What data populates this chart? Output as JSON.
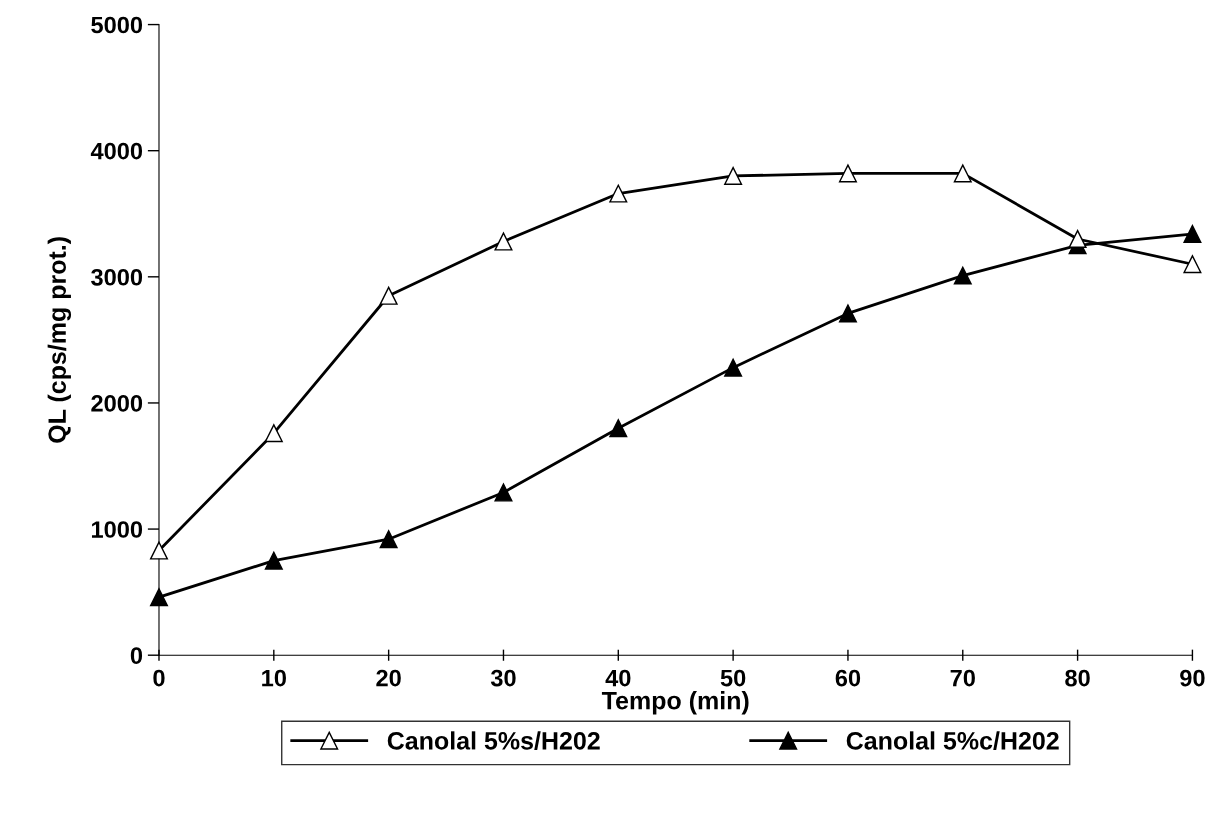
{
  "chart_data": {
    "type": "line",
    "xlabel": "Tempo (min)",
    "ylabel": "QL (cps/mg prot.)",
    "x": [
      0,
      10,
      20,
      30,
      40,
      50,
      60,
      70,
      80,
      90
    ],
    "series": [
      {
        "name": "Canolal 5%s/H202",
        "color": "#000000",
        "marker": "triangle",
        "values": [
          830,
          1760,
          2850,
          3280,
          3660,
          3800,
          3820,
          3820,
          3300,
          3100
        ]
      },
      {
        "name": "Canolal 5%c/H202",
        "color": "#000000",
        "marker": "triangle",
        "values": [
          460,
          750,
          920,
          1290,
          1800,
          2280,
          2710,
          3010,
          3250,
          3340
        ]
      }
    ],
    "xlim": [
      0,
      90
    ],
    "xticks": [
      0,
      10,
      20,
      30,
      40,
      50,
      60,
      70,
      80,
      90
    ],
    "ylim": [
      0,
      5000
    ],
    "yticks": [
      0,
      1000,
      2000,
      3000,
      4000,
      5000
    ],
    "grid": false,
    "legend": "bottom",
    "line_style": "solid"
  }
}
